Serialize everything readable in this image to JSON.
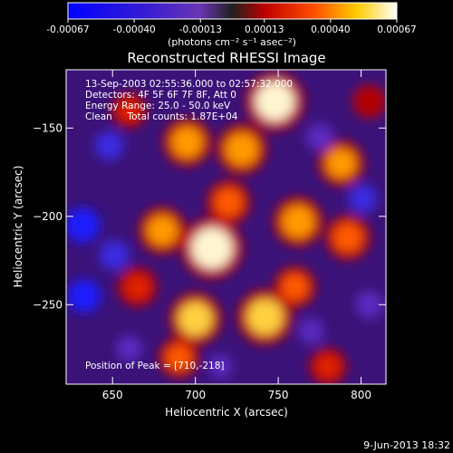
{
  "chart_data": {
    "type": "heatmap",
    "title": "Reconstructed RHESSI Image",
    "xlabel": "Heliocentric X (arcsec)",
    "ylabel": "Heliocentric Y (arcsec)",
    "xlim": [
      622,
      815
    ],
    "ylim": [
      -295,
      -117
    ],
    "x_ticks": [
      650,
      700,
      750,
      800
    ],
    "y_ticks": [
      -150,
      -200,
      -250
    ],
    "annotations": [
      "13-Sep-2003 02:55:36.000 to 02:57:32.000",
      "Detectors: 4F 5F 6F 7F 8F, Att 0",
      "Energy Range: 25.0 - 50.0 keV",
      "Clean     Total counts: 1.87E+04"
    ],
    "peak_label": "Position of Peak = [710,-218]",
    "colorbar": {
      "ticks": [
        "-0.00067",
        "-0.00040",
        "-0.00013",
        "0.00013",
        "0.00040",
        "0.00067"
      ],
      "range": [
        -0.00067,
        0.00067
      ],
      "unit_label": "(photons cm⁻² s⁻¹ asec⁻²)"
    },
    "timestamp": "9-Jun-2013 18:32",
    "bright_sources": [
      {
        "x": 710,
        "y": -218,
        "value": 0.00067
      },
      {
        "x": 748,
        "y": -135,
        "value": 0.00062
      },
      {
        "x": 742,
        "y": -257,
        "value": 0.00055
      },
      {
        "x": 700,
        "y": -258,
        "value": 0.0005
      },
      {
        "x": 728,
        "y": -162,
        "value": 0.00046
      },
      {
        "x": 695,
        "y": -158,
        "value": 0.00042
      },
      {
        "x": 680,
        "y": -208,
        "value": 0.0004
      },
      {
        "x": 762,
        "y": -203,
        "value": 0.00045
      },
      {
        "x": 788,
        "y": -170,
        "value": 0.00038
      },
      {
        "x": 792,
        "y": -212,
        "value": 0.00036
      },
      {
        "x": 720,
        "y": -192,
        "value": 0.00034
      },
      {
        "x": 760,
        "y": -240,
        "value": 0.0003
      },
      {
        "x": 690,
        "y": -280,
        "value": 0.00028
      },
      {
        "x": 665,
        "y": -240,
        "value": 0.00026
      },
      {
        "x": 780,
        "y": -285,
        "value": 0.00022
      },
      {
        "x": 660,
        "y": -140,
        "value": 0.00018
      },
      {
        "x": 805,
        "y": -135,
        "value": 0.00015
      }
    ],
    "dark_sources": [
      {
        "x": 632,
        "y": -205,
        "value": -0.0006
      },
      {
        "x": 633,
        "y": -245,
        "value": -0.00055
      },
      {
        "x": 648,
        "y": -160,
        "value": -0.0004
      },
      {
        "x": 651,
        "y": -222,
        "value": -0.00045
      },
      {
        "x": 775,
        "y": -155,
        "value": -0.00035
      },
      {
        "x": 801,
        "y": -190,
        "value": -0.0004
      },
      {
        "x": 805,
        "y": -250,
        "value": -0.00035
      },
      {
        "x": 770,
        "y": -265,
        "value": -0.00028
      },
      {
        "x": 660,
        "y": -275,
        "value": -0.0003
      },
      {
        "x": 715,
        "y": -285,
        "value": -0.00022
      }
    ]
  }
}
